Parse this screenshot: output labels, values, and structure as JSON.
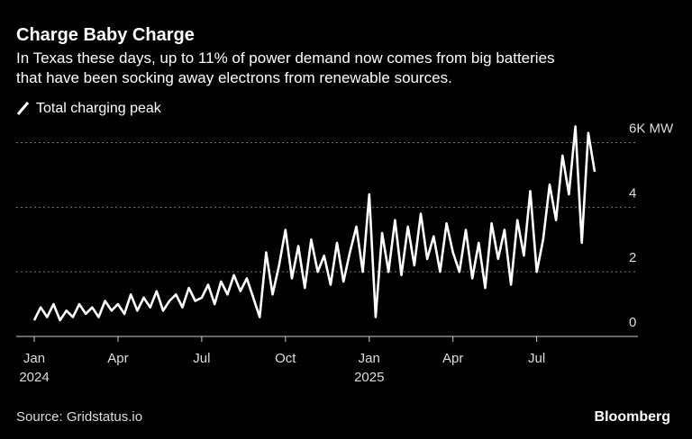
{
  "chart_data": {
    "type": "line",
    "title": "Charge Baby Charge",
    "subtitle": [
      "In Texas these days, up to 11% of power demand now comes from big batteries",
      "that have been socking away electrons from renewable sources."
    ],
    "source": "Source: Gridstatus.io",
    "brand": "Bloomberg",
    "series": [
      {
        "name": "Total charging peak",
        "color": "#ffffff",
        "values": [
          0.5,
          0.9,
          0.6,
          1.0,
          0.5,
          0.8,
          0.6,
          1.0,
          0.7,
          0.9,
          0.6,
          1.1,
          0.8,
          1.0,
          0.7,
          1.3,
          0.8,
          1.2,
          0.9,
          1.4,
          0.8,
          1.1,
          1.3,
          0.9,
          1.5,
          1.1,
          1.2,
          1.6,
          1.0,
          1.7,
          1.3,
          1.9,
          1.4,
          1.8,
          1.2,
          0.6,
          2.6,
          1.3,
          2.2,
          3.3,
          1.8,
          2.8,
          1.5,
          3.0,
          2.0,
          2.5,
          1.6,
          2.9,
          1.7,
          2.6,
          3.4,
          2.0,
          4.4,
          0.6,
          3.2,
          2.0,
          3.6,
          1.9,
          3.4,
          2.2,
          3.8,
          2.4,
          3.1,
          2.0,
          3.5,
          2.6,
          2.0,
          3.3,
          1.8,
          2.9,
          1.5,
          3.5,
          2.4,
          3.3,
          1.6,
          3.6,
          2.5,
          4.5,
          2.0,
          3.0,
          4.7,
          3.6,
          5.6,
          4.4,
          6.5,
          2.9,
          6.3,
          5.1
        ]
      }
    ],
    "categories": [
      "Jan 2024",
      null,
      null,
      null,
      null,
      null,
      null,
      null,
      null,
      null,
      null,
      null,
      null,
      "Apr",
      null,
      null,
      null,
      null,
      null,
      null,
      null,
      null,
      null,
      null,
      null,
      null,
      "Jul",
      null,
      null,
      null,
      null,
      null,
      null,
      null,
      null,
      null,
      null,
      null,
      null,
      "Oct",
      null,
      null,
      null,
      null,
      null,
      null,
      null,
      null,
      null,
      null,
      null,
      null,
      "Jan 2025",
      null,
      null,
      null,
      null,
      null,
      null,
      null,
      null,
      null,
      null,
      null,
      null,
      "Apr",
      null,
      null,
      null,
      null,
      null,
      null,
      null,
      null,
      null,
      null,
      null,
      null,
      "Jul",
      null,
      null,
      null,
      null,
      null,
      null,
      null,
      null,
      null
    ],
    "ylim": [
      0,
      6.6
    ],
    "yticks": [
      0,
      2,
      4,
      {
        "value": 6,
        "label": "6K MW"
      }
    ],
    "grid": true
  }
}
